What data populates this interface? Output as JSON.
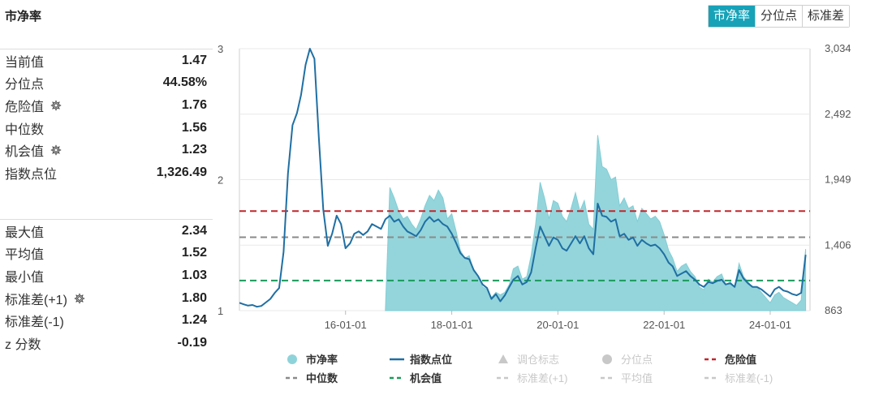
{
  "title": "市净率",
  "tabs": [
    {
      "label": "市净率",
      "active": true
    },
    {
      "label": "分位点",
      "active": false
    },
    {
      "label": "标准差",
      "active": false
    }
  ],
  "stats_top": [
    {
      "label": "当前值",
      "value": "1.47",
      "gear": false
    },
    {
      "label": "分位点",
      "value": "44.58%",
      "gear": false
    },
    {
      "label": "危险值",
      "value": "1.76",
      "gear": true
    },
    {
      "label": "中位数",
      "value": "1.56",
      "gear": false
    },
    {
      "label": "机会值",
      "value": "1.23",
      "gear": true
    },
    {
      "label": "指数点位",
      "value": "1,326.49",
      "gear": false
    }
  ],
  "stats_bottom": [
    {
      "label": "最大值",
      "value": "2.34",
      "gear": false
    },
    {
      "label": "平均值",
      "value": "1.52",
      "gear": false
    },
    {
      "label": "最小值",
      "value": "1.03",
      "gear": false
    },
    {
      "label": "标准差(+1)",
      "value": "1.80",
      "gear": true
    },
    {
      "label": "标准差(-1)",
      "value": "1.24",
      "gear": false
    },
    {
      "label": "z 分数",
      "value": "-0.19",
      "gear": false
    }
  ],
  "colors": {
    "accent": "#17a2b8",
    "area": "#8fd3da",
    "index_line": "#1f6fa3",
    "danger": "#c0262c",
    "median": "#8a8a8a",
    "opportunity": "#1a9a5a",
    "legend_disabled": "#c8c8c8"
  },
  "chart_data": {
    "type": "line",
    "left_axis": {
      "ticks": [
        "3",
        "2",
        "1"
      ],
      "min": 1,
      "max": 3
    },
    "right_axis": {
      "ticks": [
        "3,034",
        "2,492",
        "1,949",
        "1,406",
        "863"
      ],
      "min": 863,
      "max": 3034
    },
    "x_ticks": [
      "16-01-01",
      "18-01-01",
      "20-01-01",
      "22-01-01",
      "24-01-01"
    ],
    "x_range": [
      "2014-01-01",
      "2024-10-01"
    ],
    "reference_lines": [
      {
        "name": "危险值",
        "value": 1.76
      },
      {
        "name": "中位数",
        "value": 1.56
      },
      {
        "name": "机会值",
        "value": 1.23
      }
    ],
    "series": [
      {
        "name": "市净率",
        "kind": "area",
        "points": [
          [
            "2016-10",
            1.0
          ],
          [
            "2016-11",
            1.94
          ],
          [
            "2016-12",
            1.86
          ],
          [
            "2017-01",
            1.76
          ],
          [
            "2017-02",
            1.7
          ],
          [
            "2017-03",
            1.72
          ],
          [
            "2017-04",
            1.66
          ],
          [
            "2017-05",
            1.62
          ],
          [
            "2017-06",
            1.7
          ],
          [
            "2017-07",
            1.8
          ],
          [
            "2017-08",
            1.88
          ],
          [
            "2017-09",
            1.84
          ],
          [
            "2017-10",
            1.92
          ],
          [
            "2017-11",
            1.86
          ],
          [
            "2017-12",
            1.7
          ],
          [
            "2018-01",
            1.74
          ],
          [
            "2018-02",
            1.6
          ],
          [
            "2018-03",
            1.46
          ],
          [
            "2018-04",
            1.4
          ],
          [
            "2018-05",
            1.42
          ],
          [
            "2018-06",
            1.3
          ],
          [
            "2018-07",
            1.26
          ],
          [
            "2018-08",
            1.18
          ],
          [
            "2018-09",
            1.16
          ],
          [
            "2018-10",
            1.1
          ],
          [
            "2018-11",
            1.14
          ],
          [
            "2018-12",
            1.12
          ],
          [
            "2019-01",
            1.14
          ],
          [
            "2019-02",
            1.2
          ],
          [
            "2019-03",
            1.32
          ],
          [
            "2019-04",
            1.34
          ],
          [
            "2019-05",
            1.24
          ],
          [
            "2019-06",
            1.26
          ],
          [
            "2019-07",
            1.42
          ],
          [
            "2019-08",
            1.66
          ],
          [
            "2019-09",
            1.98
          ],
          [
            "2019-10",
            1.86
          ],
          [
            "2019-11",
            1.7
          ],
          [
            "2019-12",
            1.84
          ],
          [
            "2020-01",
            1.82
          ],
          [
            "2020-02",
            1.72
          ],
          [
            "2020-03",
            1.68
          ],
          [
            "2020-04",
            1.78
          ],
          [
            "2020-05",
            1.9
          ],
          [
            "2020-06",
            1.76
          ],
          [
            "2020-07",
            1.84
          ],
          [
            "2020-08",
            1.66
          ],
          [
            "2020-09",
            1.62
          ],
          [
            "2020-10",
            2.34
          ],
          [
            "2020-11",
            2.1
          ],
          [
            "2020-12",
            2.08
          ],
          [
            "2021-01",
            2.0
          ],
          [
            "2021-02",
            2.02
          ],
          [
            "2021-03",
            1.8
          ],
          [
            "2021-04",
            1.86
          ],
          [
            "2021-05",
            1.78
          ],
          [
            "2021-06",
            1.8
          ],
          [
            "2021-07",
            1.68
          ],
          [
            "2021-08",
            1.78
          ],
          [
            "2021-09",
            1.74
          ],
          [
            "2021-10",
            1.7
          ],
          [
            "2021-11",
            1.72
          ],
          [
            "2021-12",
            1.68
          ],
          [
            "2022-01",
            1.58
          ],
          [
            "2022-02",
            1.46
          ],
          [
            "2022-03",
            1.4
          ],
          [
            "2022-04",
            1.3
          ],
          [
            "2022-05",
            1.34
          ],
          [
            "2022-06",
            1.36
          ],
          [
            "2022-07",
            1.3
          ],
          [
            "2022-08",
            1.26
          ],
          [
            "2022-09",
            1.18
          ],
          [
            "2022-10",
            1.16
          ],
          [
            "2022-11",
            1.24
          ],
          [
            "2022-12",
            1.22
          ],
          [
            "2023-01",
            1.26
          ],
          [
            "2023-02",
            1.28
          ],
          [
            "2023-03",
            1.2
          ],
          [
            "2023-04",
            1.22
          ],
          [
            "2023-05",
            1.18
          ],
          [
            "2023-06",
            1.36
          ],
          [
            "2023-07",
            1.26
          ],
          [
            "2023-08",
            1.22
          ],
          [
            "2023-09",
            1.18
          ],
          [
            "2023-10",
            1.18
          ],
          [
            "2023-11",
            1.14
          ],
          [
            "2023-12",
            1.1
          ],
          [
            "2024-01",
            1.06
          ],
          [
            "2024-02",
            1.12
          ],
          [
            "2024-03",
            1.14
          ],
          [
            "2024-04",
            1.1
          ],
          [
            "2024-05",
            1.08
          ],
          [
            "2024-06",
            1.06
          ],
          [
            "2024-07",
            1.04
          ],
          [
            "2024-08",
            1.08
          ],
          [
            "2024-09",
            1.47
          ]
        ]
      },
      {
        "name": "指数点位",
        "kind": "line",
        "points": [
          [
            "2014-01",
            928
          ],
          [
            "2014-02",
            915
          ],
          [
            "2014-03",
            905
          ],
          [
            "2014-04",
            910
          ],
          [
            "2014-05",
            895
          ],
          [
            "2014-06",
            902
          ],
          [
            "2014-07",
            930
          ],
          [
            "2014-08",
            960
          ],
          [
            "2014-09",
            1010
          ],
          [
            "2014-10",
            1050
          ],
          [
            "2014-11",
            1350
          ],
          [
            "2014-12",
            2000
          ],
          [
            "2015-01",
            2400
          ],
          [
            "2015-02",
            2500
          ],
          [
            "2015-03",
            2650
          ],
          [
            "2015-04",
            2900
          ],
          [
            "2015-05",
            3034
          ],
          [
            "2015-06",
            2950
          ],
          [
            "2015-07",
            2300
          ],
          [
            "2015-08",
            1700
          ],
          [
            "2015-09",
            1400
          ],
          [
            "2015-10",
            1500
          ],
          [
            "2015-11",
            1650
          ],
          [
            "2015-12",
            1580
          ],
          [
            "2016-01",
            1380
          ],
          [
            "2016-02",
            1420
          ],
          [
            "2016-03",
            1500
          ],
          [
            "2016-04",
            1520
          ],
          [
            "2016-05",
            1490
          ],
          [
            "2016-06",
            1520
          ],
          [
            "2016-07",
            1580
          ],
          [
            "2016-08",
            1560
          ],
          [
            "2016-09",
            1540
          ],
          [
            "2016-10",
            1620
          ],
          [
            "2016-11",
            1650
          ],
          [
            "2016-12",
            1600
          ],
          [
            "2017-01",
            1620
          ],
          [
            "2017-02",
            1560
          ],
          [
            "2017-03",
            1520
          ],
          [
            "2017-04",
            1500
          ],
          [
            "2017-05",
            1480
          ],
          [
            "2017-06",
            1530
          ],
          [
            "2017-07",
            1600
          ],
          [
            "2017-08",
            1640
          ],
          [
            "2017-09",
            1600
          ],
          [
            "2017-10",
            1620
          ],
          [
            "2017-11",
            1580
          ],
          [
            "2017-12",
            1560
          ],
          [
            "2018-01",
            1500
          ],
          [
            "2018-02",
            1420
          ],
          [
            "2018-03",
            1340
          ],
          [
            "2018-04",
            1300
          ],
          [
            "2018-05",
            1290
          ],
          [
            "2018-06",
            1200
          ],
          [
            "2018-07",
            1150
          ],
          [
            "2018-08",
            1080
          ],
          [
            "2018-09",
            1050
          ],
          [
            "2018-10",
            960
          ],
          [
            "2018-11",
            1000
          ],
          [
            "2018-12",
            940
          ],
          [
            "2019-01",
            990
          ],
          [
            "2019-02",
            1060
          ],
          [
            "2019-03",
            1120
          ],
          [
            "2019-04",
            1150
          ],
          [
            "2019-05",
            1080
          ],
          [
            "2019-06",
            1100
          ],
          [
            "2019-07",
            1180
          ],
          [
            "2019-08",
            1380
          ],
          [
            "2019-09",
            1560
          ],
          [
            "2019-10",
            1480
          ],
          [
            "2019-11",
            1400
          ],
          [
            "2019-12",
            1470
          ],
          [
            "2020-01",
            1450
          ],
          [
            "2020-02",
            1380
          ],
          [
            "2020-03",
            1360
          ],
          [
            "2020-04",
            1420
          ],
          [
            "2020-05",
            1480
          ],
          [
            "2020-06",
            1420
          ],
          [
            "2020-07",
            1480
          ],
          [
            "2020-08",
            1380
          ],
          [
            "2020-09",
            1330
          ],
          [
            "2020-10",
            1750
          ],
          [
            "2020-11",
            1650
          ],
          [
            "2020-12",
            1640
          ],
          [
            "2021-01",
            1600
          ],
          [
            "2021-02",
            1620
          ],
          [
            "2021-03",
            1480
          ],
          [
            "2021-04",
            1500
          ],
          [
            "2021-05",
            1450
          ],
          [
            "2021-06",
            1470
          ],
          [
            "2021-07",
            1400
          ],
          [
            "2021-08",
            1450
          ],
          [
            "2021-09",
            1420
          ],
          [
            "2021-10",
            1400
          ],
          [
            "2021-11",
            1410
          ],
          [
            "2021-12",
            1380
          ],
          [
            "2022-01",
            1330
          ],
          [
            "2022-02",
            1260
          ],
          [
            "2022-03",
            1230
          ],
          [
            "2022-04",
            1150
          ],
          [
            "2022-05",
            1170
          ],
          [
            "2022-06",
            1190
          ],
          [
            "2022-07",
            1150
          ],
          [
            "2022-08",
            1120
          ],
          [
            "2022-09",
            1080
          ],
          [
            "2022-10",
            1060
          ],
          [
            "2022-11",
            1100
          ],
          [
            "2022-12",
            1090
          ],
          [
            "2023-01",
            1110
          ],
          [
            "2023-02",
            1120
          ],
          [
            "2023-03",
            1080
          ],
          [
            "2023-04",
            1090
          ],
          [
            "2023-05",
            1060
          ],
          [
            "2023-06",
            1200
          ],
          [
            "2023-07",
            1130
          ],
          [
            "2023-08",
            1090
          ],
          [
            "2023-09",
            1060
          ],
          [
            "2023-10",
            1060
          ],
          [
            "2023-11",
            1040
          ],
          [
            "2023-12",
            1010
          ],
          [
            "2024-01",
            980
          ],
          [
            "2024-02",
            1040
          ],
          [
            "2024-03",
            1060
          ],
          [
            "2024-04",
            1030
          ],
          [
            "2024-05",
            1020
          ],
          [
            "2024-06",
            1000
          ],
          [
            "2024-07",
            990
          ],
          [
            "2024-08",
            1010
          ],
          [
            "2024-09",
            1326
          ]
        ]
      }
    ],
    "legend": [
      {
        "name": "市净率",
        "symbol": "circle",
        "color": "#8fd3da",
        "enabled": true
      },
      {
        "name": "指数点位",
        "symbol": "line",
        "color": "#1f6fa3",
        "enabled": true
      },
      {
        "name": "调仓标志",
        "symbol": "triangle",
        "color": "#c8c8c8",
        "enabled": false
      },
      {
        "name": "分位点",
        "symbol": "circle",
        "color": "#c8c8c8",
        "enabled": false
      },
      {
        "name": "危险值",
        "symbol": "dash",
        "color": "#c0262c",
        "enabled": true
      },
      {
        "name": "中位数",
        "symbol": "dash",
        "color": "#8a8a8a",
        "enabled": true
      },
      {
        "name": "机会值",
        "symbol": "dash",
        "color": "#1a9a5a",
        "enabled": true
      },
      {
        "name": "标准差(+1)",
        "symbol": "dash",
        "color": "#c8c8c8",
        "enabled": false
      },
      {
        "name": "平均值",
        "symbol": "dash",
        "color": "#c8c8c8",
        "enabled": false
      },
      {
        "name": "标准差(-1)",
        "symbol": "dash",
        "color": "#c8c8c8",
        "enabled": false
      }
    ]
  }
}
